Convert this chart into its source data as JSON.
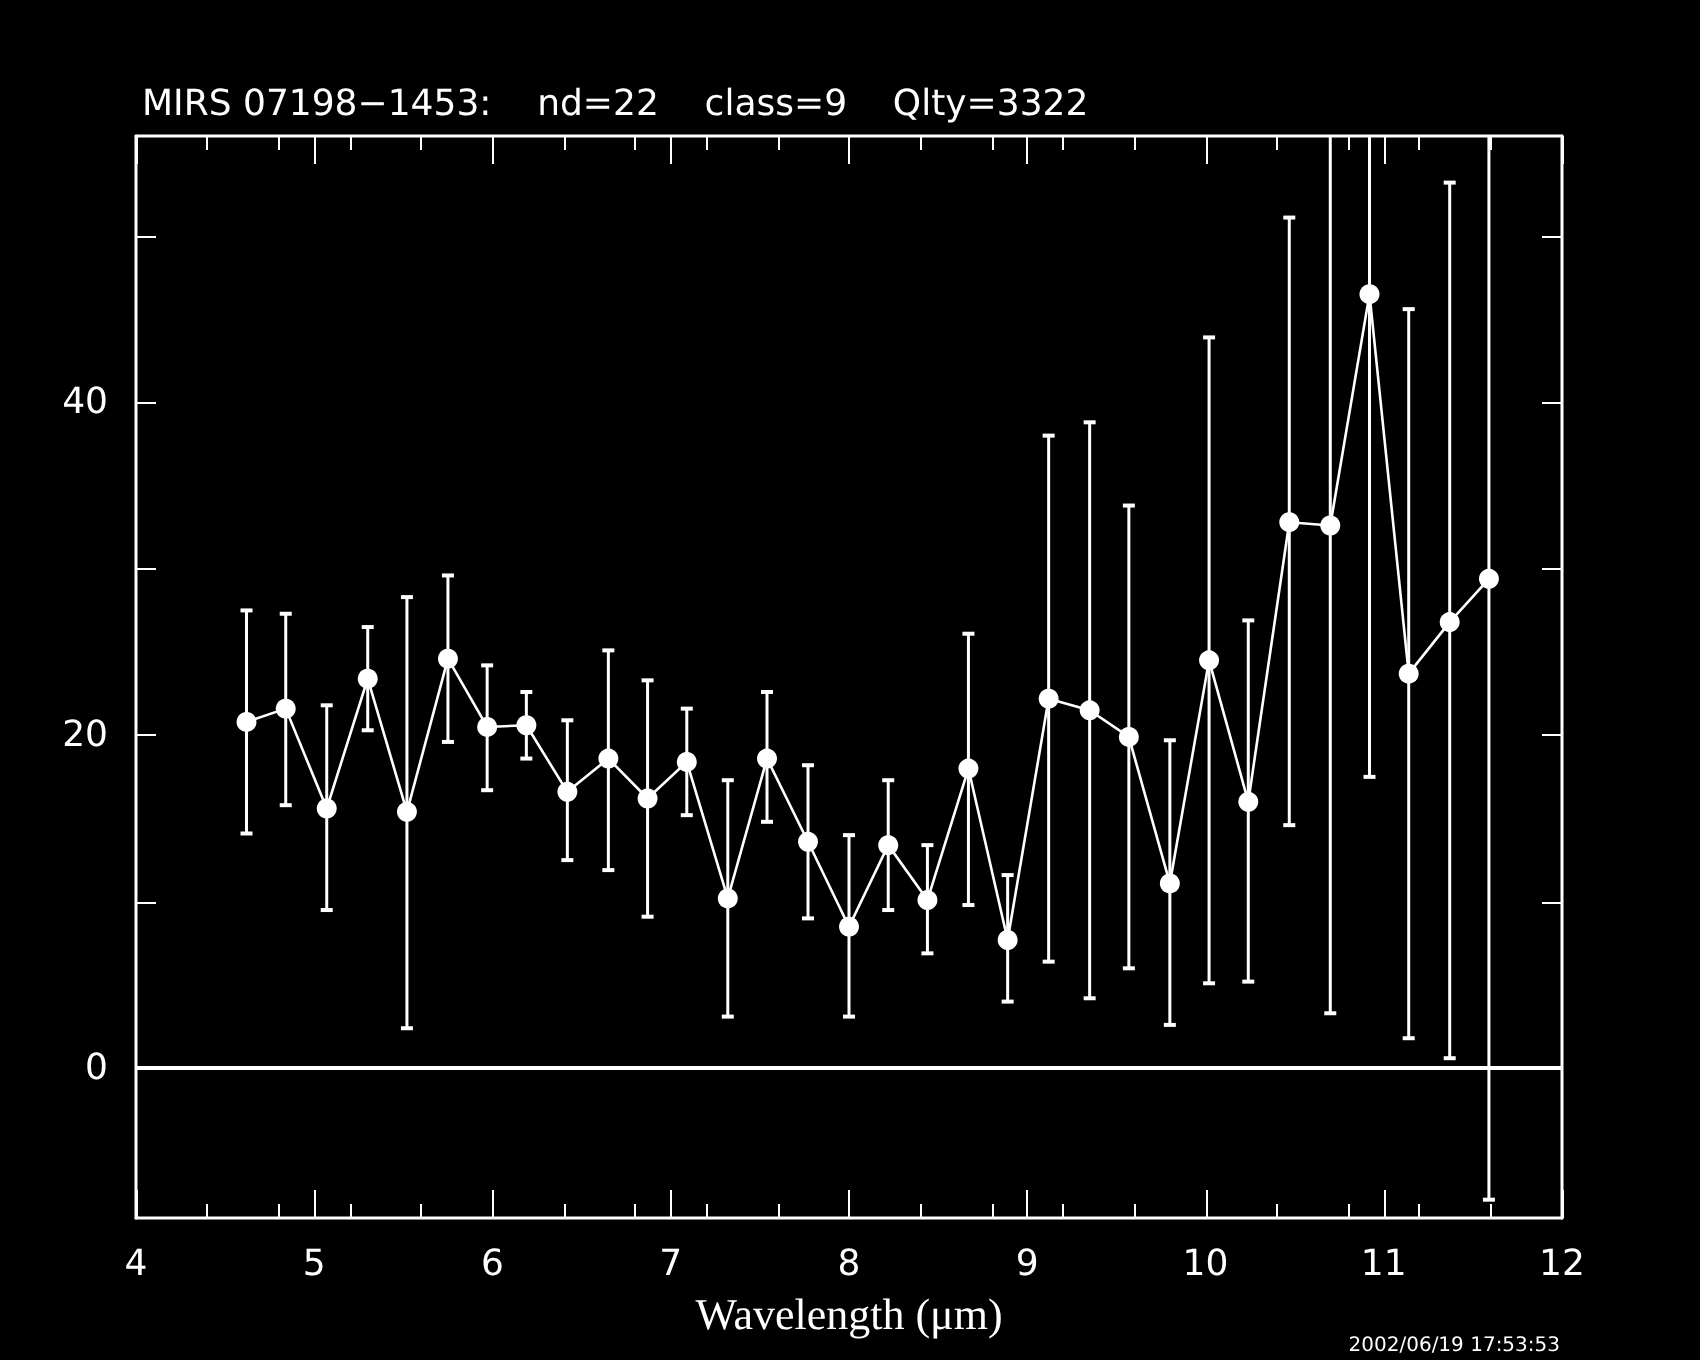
{
  "chart_data": {
    "type": "line",
    "title": "MIRS 07198−1453:    nd=22    class=9    Qlty=3322",
    "xlabel": "Wavelength (μm)",
    "annotations": [
      "2002/06/19 17:53:53"
    ],
    "x": [
      4.62,
      4.84,
      5.07,
      5.3,
      5.52,
      5.75,
      5.97,
      6.19,
      6.42,
      6.65,
      6.87,
      7.09,
      7.32,
      7.54,
      7.77,
      8.0,
      8.22,
      8.44,
      8.67,
      8.89,
      9.12,
      9.35,
      9.57,
      9.8,
      10.02,
      10.24,
      10.47,
      10.7,
      10.92,
      11.14,
      11.37,
      11.59
    ],
    "series": [
      {
        "color": "#ffffff",
        "marker": "circle",
        "line_style": "solid",
        "values": [
          20.8,
          21.6,
          15.6,
          23.4,
          15.4,
          24.6,
          20.5,
          20.6,
          16.6,
          18.6,
          16.2,
          18.4,
          10.2,
          18.6,
          13.6,
          8.5,
          13.4,
          10.1,
          18.0,
          7.7,
          22.2,
          21.5,
          19.9,
          11.1,
          24.5,
          16.0,
          32.8,
          32.6,
          46.5,
          23.7,
          26.8,
          29.4
        ],
        "errors": [
          [
            14.1,
            27.5
          ],
          [
            15.8,
            27.3
          ],
          [
            9.5,
            21.8
          ],
          [
            20.3,
            26.5
          ],
          [
            2.4,
            28.3
          ],
          [
            19.6,
            29.6
          ],
          [
            16.7,
            24.2
          ],
          [
            18.6,
            22.6
          ],
          [
            12.5,
            20.9
          ],
          [
            11.9,
            25.1
          ],
          [
            9.1,
            23.3
          ],
          [
            15.2,
            21.6
          ],
          [
            3.1,
            17.3
          ],
          [
            14.8,
            22.6
          ],
          [
            9.0,
            18.2
          ],
          [
            3.1,
            14.0
          ],
          [
            9.5,
            17.3
          ],
          [
            6.9,
            13.4
          ],
          [
            9.8,
            26.1
          ],
          [
            4.0,
            11.6
          ],
          [
            6.4,
            38.0
          ],
          [
            4.2,
            38.8
          ],
          [
            6.0,
            33.8
          ],
          [
            2.6,
            19.7
          ],
          [
            5.1,
            43.9
          ],
          [
            5.2,
            26.9
          ],
          [
            14.6,
            51.1
          ],
          [
            3.3,
            56
          ],
          [
            17.5,
            56
          ],
          [
            1.8,
            45.6
          ],
          [
            0.6,
            53.2
          ],
          [
            -7.9,
            56
          ]
        ]
      }
    ],
    "xlim": [
      4,
      12
    ],
    "xticks": [
      4,
      5,
      6,
      7,
      8,
      9,
      10,
      11,
      12
    ],
    "ylim": [
      -9,
      56
    ],
    "yticks": [
      0,
      20,
      40,
      {
        "value": 10,
        "label": null
      },
      {
        "value": 30,
        "label": null
      },
      {
        "value": 50,
        "label": null
      }
    ],
    "ref_lines": [
      {
        "axis": "y",
        "value": 0,
        "color": "#ffffff",
        "line_style": "solid"
      }
    ],
    "grid": false
  }
}
